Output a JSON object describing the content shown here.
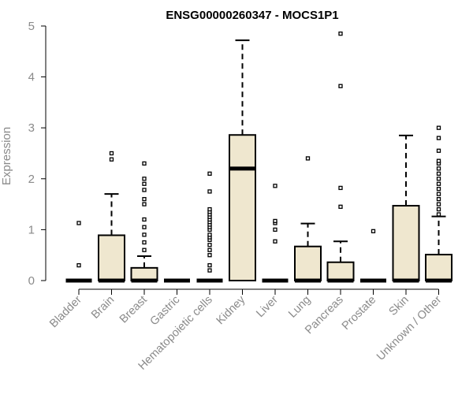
{
  "chart_data": {
    "type": "box",
    "title": "ENSG00000260347 - MOCS1P1",
    "xlabel": "",
    "ylabel": "Expression",
    "ylim": [
      0,
      5
    ],
    "yticks": [
      0,
      1,
      2,
      3,
      4,
      5
    ],
    "grid": false,
    "legend": "none",
    "box_fill": "#efe7cf",
    "categories": [
      "Bladder",
      "Brain",
      "Breast",
      "Gastric",
      "Hematopoietic cells",
      "Kidney",
      "Liver",
      "Lung",
      "Pancreas",
      "Prostate",
      "Skin",
      "Unknown / Other"
    ],
    "boxes": [
      {
        "category": "Bladder",
        "q1": 0,
        "median": 0,
        "q3": 0,
        "whisker_low": 0,
        "whisker_high": 0,
        "outliers": [
          0.3,
          1.13
        ]
      },
      {
        "category": "Brain",
        "q1": 0,
        "median": 0,
        "q3": 0.89,
        "whisker_low": 0,
        "whisker_high": 1.7,
        "outliers": [
          2.38,
          2.5
        ]
      },
      {
        "category": "Breast",
        "q1": 0,
        "median": 0,
        "q3": 0.25,
        "whisker_low": 0,
        "whisker_high": 0.48,
        "outliers": [
          0.6,
          0.75,
          0.9,
          1.05,
          1.2,
          1.5,
          1.6,
          1.78,
          1.9,
          2.0,
          2.3
        ]
      },
      {
        "category": "Gastric",
        "q1": 0,
        "median": 0,
        "q3": 0,
        "whisker_low": 0,
        "whisker_high": 0,
        "outliers": []
      },
      {
        "category": "Hematopoietic cells",
        "q1": 0,
        "median": 0,
        "q3": 0,
        "whisker_low": 0,
        "whisker_high": 0,
        "outliers": [
          0.2,
          0.3,
          0.5,
          0.6,
          0.7,
          0.8,
          0.85,
          0.9,
          1.0,
          1.05,
          1.1,
          1.15,
          1.2,
          1.25,
          1.3,
          1.35,
          1.4,
          1.75,
          2.1
        ]
      },
      {
        "category": "Kidney",
        "q1": 0,
        "median": 2.2,
        "q3": 2.86,
        "whisker_low": 0,
        "whisker_high": 4.72,
        "outliers": []
      },
      {
        "category": "Liver",
        "q1": 0,
        "median": 0,
        "q3": 0,
        "whisker_low": 0,
        "whisker_high": 0,
        "outliers": [
          0.77,
          1.0,
          1.13,
          1.17,
          1.86
        ]
      },
      {
        "category": "Lung",
        "q1": 0,
        "median": 0,
        "q3": 0.67,
        "whisker_low": 0,
        "whisker_high": 1.12,
        "outliers": [
          2.4
        ]
      },
      {
        "category": "Pancreas",
        "q1": 0,
        "median": 0,
        "q3": 0.36,
        "whisker_low": 0,
        "whisker_high": 0.77,
        "outliers": [
          1.45,
          1.82,
          3.82,
          4.85
        ]
      },
      {
        "category": "Prostate",
        "q1": 0,
        "median": 0,
        "q3": 0,
        "whisker_low": 0,
        "whisker_high": 0,
        "outliers": [
          0.97
        ]
      },
      {
        "category": "Skin",
        "q1": 0,
        "median": 0,
        "q3": 1.47,
        "whisker_low": 0,
        "whisker_high": 2.85,
        "outliers": []
      },
      {
        "category": "Unknown / Other",
        "q1": 0,
        "median": 0,
        "q3": 0.51,
        "whisker_low": 0,
        "whisker_high": 1.26,
        "outliers": [
          1.3,
          1.4,
          1.5,
          1.6,
          1.7,
          1.8,
          1.9,
          2.0,
          2.1,
          2.2,
          2.3,
          2.35,
          2.55,
          2.8,
          3.0
        ]
      }
    ]
  }
}
